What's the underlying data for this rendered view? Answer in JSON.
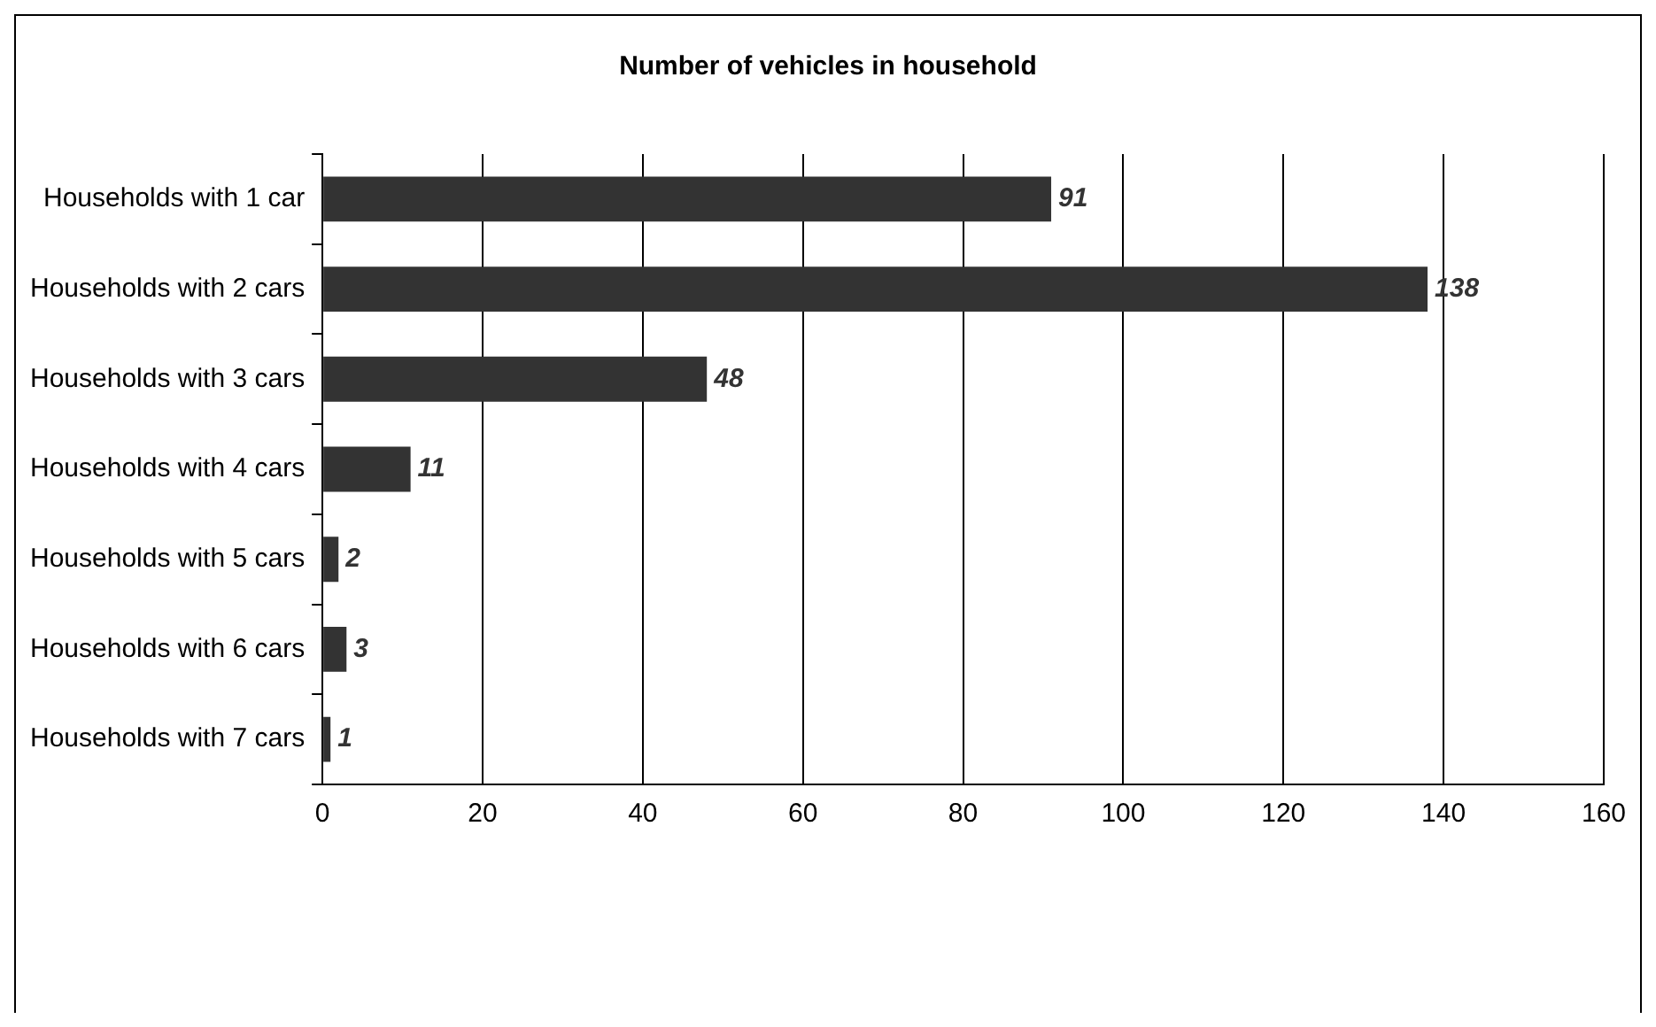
{
  "chart_data": {
    "type": "bar",
    "orientation": "horizontal",
    "title": "Number of vehicles in household",
    "categories": [
      "Households with 1 car",
      "Households with 2 cars",
      "Households with 3 cars",
      "Households with 4 cars",
      "Households with 5 cars",
      "Households with 6 cars",
      "Households with 7 cars"
    ],
    "values": [
      91,
      138,
      48,
      11,
      2,
      3,
      1
    ],
    "color": "#333333",
    "xlim": [
      0,
      160
    ],
    "xticks": [
      0,
      20,
      40,
      60,
      80,
      100,
      120,
      140,
      160
    ],
    "grid": "x",
    "legend": false,
    "data_labels": true
  }
}
